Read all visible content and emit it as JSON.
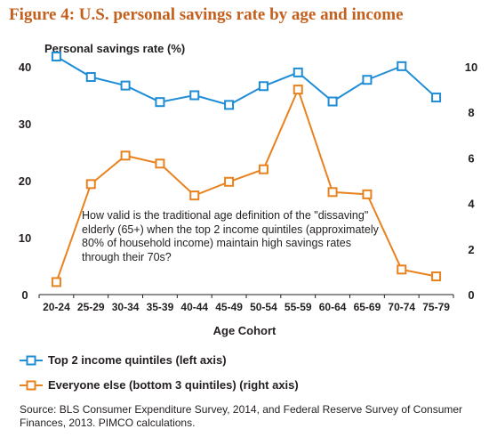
{
  "figure_title": "Figure 4: U.S. personal savings rate by age and income",
  "chart_data": {
    "type": "line",
    "ylabel": "Personal savings rate (%)",
    "xlabel": "Age Cohort",
    "categories": [
      "20-24",
      "25-29",
      "30-34",
      "35-39",
      "40-44",
      "45-49",
      "50-54",
      "55-59",
      "60-64",
      "65-69",
      "70-74",
      "75-79"
    ],
    "left_axis": {
      "min": 0,
      "max": 40,
      "ticks": [
        "0",
        "10",
        "20",
        "30",
        "40"
      ]
    },
    "right_axis": {
      "min": 0,
      "max": 10,
      "ticks": [
        "0",
        "2",
        "4",
        "6",
        "8",
        "10"
      ]
    },
    "series": [
      {
        "name": "Top 2 income quintiles (left axis)",
        "axis": "left",
        "color": "#1f8dd6",
        "values": [
          41.8,
          38.2,
          36.7,
          33.8,
          35.0,
          33.3,
          36.6,
          39.0,
          33.9,
          37.7,
          40.1,
          34.6
        ]
      },
      {
        "name": "Everyone else (bottom 3 quintiles) (right axis)",
        "axis": "right",
        "color": "#e8821e",
        "values": [
          0.55,
          4.85,
          6.1,
          5.75,
          4.35,
          4.95,
          5.5,
          9.0,
          4.5,
          4.4,
          1.1,
          0.8
        ]
      }
    ],
    "annotation": "How valid is the traditional age definition of the \"dissaving\" elderly (65+) when the top 2 income quintiles (approximately 80% of  household income) maintain high savings rates through their 70s?",
    "grid": false
  },
  "source": "Source: BLS Consumer Expenditure Survey, 2014, and  Federal Reserve Survey of Consumer Finances, 2013. PIMCO calculations."
}
